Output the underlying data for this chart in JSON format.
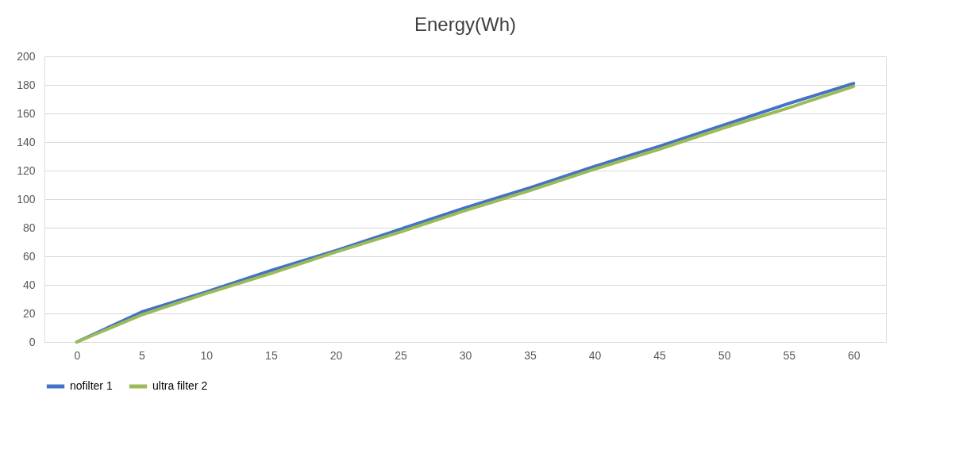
{
  "chart_data": {
    "type": "line",
    "title": "Energy(Wh)",
    "categories": [
      "0",
      "5",
      "10",
      "15",
      "20",
      "25",
      "30",
      "35",
      "40",
      "45",
      "50",
      "55",
      "60"
    ],
    "series": [
      {
        "name": "nofilter 1",
        "color": "#4472c4",
        "values": [
          0,
          21,
          35,
          50,
          64,
          79,
          94,
          108,
          123,
          137,
          152,
          167,
          181
        ]
      },
      {
        "name": "ultra filter 2",
        "color": "#9bbb59",
        "values": [
          0,
          19,
          34,
          48,
          63,
          77,
          92,
          106,
          121,
          135,
          150,
          164,
          179
        ]
      }
    ],
    "ylim": [
      0,
      200
    ],
    "yticks": [
      0,
      20,
      40,
      60,
      80,
      100,
      120,
      140,
      160,
      180,
      200
    ],
    "grid": "y",
    "legend": "bottom",
    "marker": "none",
    "line_style": "solid"
  }
}
